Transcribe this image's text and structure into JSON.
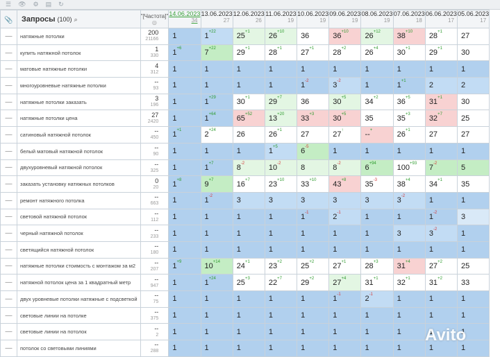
{
  "header": {
    "title": "Запросы",
    "count": "(100)",
    "freq_label": "\"[Частота]\"",
    "dates": [
      {
        "date": "14.06.2023",
        "sub": "34"
      },
      {
        "date": "13.06.2023",
        "sub": "27"
      },
      {
        "date": "12.06.2023",
        "sub": "26"
      },
      {
        "date": "11.06.2023",
        "sub": "19"
      },
      {
        "date": "10.06.2023",
        "sub": "19"
      },
      {
        "date": "09.06.2023",
        "sub": "19"
      },
      {
        "date": "08.06.2023",
        "sub": "19"
      },
      {
        "date": "07.06.2023",
        "sub": "18"
      },
      {
        "date": "06.06.2023",
        "sub": "17"
      },
      {
        "date": "05.06.2023",
        "sub": "17"
      }
    ]
  },
  "rows": [
    {
      "q": "натяжные потолки",
      "fm": "200",
      "fs": "21166",
      "c": [
        {
          "v": "1",
          "bg": "b1"
        },
        {
          "v": "1",
          "d": "+22",
          "bg": "b2"
        },
        {
          "v": "25",
          "d": "+1",
          "bg": "gl"
        },
        {
          "v": "26",
          "d": "+10",
          "bg": "gl"
        },
        {
          "v": "36",
          "bg": "w"
        },
        {
          "v": "36",
          "d": "+10",
          "bg": "r"
        },
        {
          "v": "26",
          "d": "+12",
          "bg": "gl"
        },
        {
          "v": "38",
          "d": "+10",
          "bg": "r"
        },
        {
          "v": "28",
          "d": "+1",
          "bg": "w"
        },
        {
          "v": "27",
          "bg": "w"
        }
      ]
    },
    {
      "q": "купить натяжной потолок",
      "fm": "1",
      "fs": "330",
      "c": [
        {
          "v": "1",
          "d": "+6",
          "bg": "b1"
        },
        {
          "v": "7",
          "d": "+22",
          "bg": "g"
        },
        {
          "v": "29",
          "d": "+1",
          "bg": "w"
        },
        {
          "v": "28",
          "d": "+1",
          "bg": "w"
        },
        {
          "v": "27",
          "d": "+1",
          "bg": "w"
        },
        {
          "v": "28",
          "d": "+2",
          "bg": "w"
        },
        {
          "v": "26",
          "d": "+4",
          "bg": "w"
        },
        {
          "v": "30",
          "d": "+1",
          "bg": "w"
        },
        {
          "v": "29",
          "d": "+1",
          "bg": "w"
        },
        {
          "v": "30",
          "bg": "w"
        }
      ]
    },
    {
      "q": "матовые натяжные потолки",
      "fm": "4",
      "fs": "312",
      "c": [
        {
          "v": "1",
          "bg": "b1"
        },
        {
          "v": "1",
          "bg": "b1"
        },
        {
          "v": "1",
          "bg": "b1"
        },
        {
          "v": "1",
          "bg": "b1"
        },
        {
          "v": "1",
          "bg": "b1"
        },
        {
          "v": "1",
          "bg": "b1"
        },
        {
          "v": "1",
          "bg": "b1"
        },
        {
          "v": "1",
          "bg": "b1"
        },
        {
          "v": "1",
          "bg": "b1"
        },
        {
          "v": "1",
          "bg": "b1"
        }
      ]
    },
    {
      "q": "многоуровневые натяжные потолки",
      "fm": "--",
      "fs": "93",
      "c": [
        {
          "v": "1",
          "bg": "b1"
        },
        {
          "v": "1",
          "bg": "b1"
        },
        {
          "v": "1",
          "bg": "b1"
        },
        {
          "v": "1",
          "bg": "b1"
        },
        {
          "v": "1",
          "d": "-2",
          "bg": "b1"
        },
        {
          "v": "3",
          "d": "-2",
          "bg": "b2"
        },
        {
          "v": "1",
          "bg": "b1"
        },
        {
          "v": "1",
          "d": "+1",
          "bg": "b1"
        },
        {
          "v": "2",
          "bg": "b2"
        },
        {
          "v": "2",
          "bg": "b2"
        }
      ]
    },
    {
      "q": "натяжные потолки заказать",
      "fm": "3",
      "fs": "196",
      "c": [
        {
          "v": "1",
          "bg": "b1"
        },
        {
          "v": "1",
          "d": "+29",
          "bg": "b1"
        },
        {
          "v": "30",
          "d": "+1",
          "bg": "w"
        },
        {
          "v": "29",
          "d": "+7",
          "bg": "gl"
        },
        {
          "v": "36",
          "bg": "w"
        },
        {
          "v": "30",
          "d": "+5",
          "bg": "gl"
        },
        {
          "v": "34",
          "d": "+2",
          "bg": "w"
        },
        {
          "v": "36",
          "d": "+5",
          "bg": "w"
        },
        {
          "v": "31",
          "d": "+1",
          "bg": "r"
        },
        {
          "v": "30",
          "bg": "w"
        }
      ]
    },
    {
      "q": "натяжные потолки цена",
      "fm": "27",
      "fs": "2420",
      "c": [
        {
          "v": "1",
          "bg": "b1"
        },
        {
          "v": "1",
          "d": "+64",
          "bg": "b1"
        },
        {
          "v": "65",
          "d": "+52",
          "bg": "r"
        },
        {
          "v": "13",
          "d": "+20",
          "bg": "gl"
        },
        {
          "v": "33",
          "d": "+3",
          "bg": "r"
        },
        {
          "v": "30",
          "d": "+5",
          "bg": "r"
        },
        {
          "v": "35",
          "bg": "w"
        },
        {
          "v": "35",
          "d": "+3",
          "bg": "w"
        },
        {
          "v": "32",
          "d": "+7",
          "bg": "r"
        },
        {
          "v": "25",
          "bg": "w"
        }
      ]
    },
    {
      "q": "сатиновый натяжной потолок",
      "fm": "--",
      "fs": "450",
      "c": [
        {
          "v": "1",
          "d": "+1",
          "bg": "b1"
        },
        {
          "v": "2",
          "d": "+24",
          "bg": "w"
        },
        {
          "v": "26",
          "bg": "w"
        },
        {
          "v": "26",
          "d": "+1",
          "bg": "w"
        },
        {
          "v": "27",
          "bg": "w"
        },
        {
          "v": "27",
          "d": "↑",
          "bg": "w"
        },
        {
          "v": "--",
          "d": "+",
          "bg": "r"
        },
        {
          "v": "26",
          "d": "+1",
          "bg": "w"
        },
        {
          "v": "27",
          "bg": "w"
        },
        {
          "v": "27",
          "bg": "w"
        }
      ]
    },
    {
      "q": "белый матовый натяжной потолок",
      "fm": "--",
      "fs": "90",
      "c": [
        {
          "v": "1",
          "bg": "b1"
        },
        {
          "v": "1",
          "bg": "b1"
        },
        {
          "v": "1",
          "bg": "b1"
        },
        {
          "v": "1",
          "d": "+5",
          "bg": "b2"
        },
        {
          "v": "6",
          "d": "-5",
          "bg": "g"
        },
        {
          "v": "1",
          "bg": "b1"
        },
        {
          "v": "1",
          "bg": "b1"
        },
        {
          "v": "1",
          "bg": "b1"
        },
        {
          "v": "1",
          "bg": "b1"
        },
        {
          "v": "1",
          "bg": "b1"
        }
      ]
    },
    {
      "q": "двухуровневый натяжной потолок",
      "fm": "--",
      "fs": "325",
      "c": [
        {
          "v": "1",
          "bg": "b1"
        },
        {
          "v": "1",
          "d": "+7",
          "bg": "b1"
        },
        {
          "v": "8",
          "d": "-2",
          "bg": "gl"
        },
        {
          "v": "10",
          "d": "-2",
          "bg": "gl"
        },
        {
          "v": "8",
          "bg": "gl"
        },
        {
          "v": "8",
          "d": "-2",
          "bg": "gl"
        },
        {
          "v": "6",
          "d": "+94",
          "bg": "g"
        },
        {
          "v": "100",
          "d": "+93",
          "bg": "w"
        },
        {
          "v": "7",
          "d": "-2",
          "bg": "g"
        },
        {
          "v": "5",
          "bg": "g"
        }
      ]
    },
    {
      "q": "заказать установку натяжных потолков",
      "fm": "0",
      "fs": "20",
      "c": [
        {
          "v": "1",
          "d": "+8",
          "bg": "b1"
        },
        {
          "v": "9",
          "d": "+7",
          "bg": "g"
        },
        {
          "v": "16",
          "d": "+7",
          "bg": "w"
        },
        {
          "v": "23",
          "d": "+10",
          "bg": "w"
        },
        {
          "v": "33",
          "d": "+10",
          "bg": "w"
        },
        {
          "v": "43",
          "d": "+8",
          "bg": "r"
        },
        {
          "v": "35",
          "d": "-3",
          "bg": "w"
        },
        {
          "v": "38",
          "d": "+4",
          "bg": "w"
        },
        {
          "v": "34",
          "d": "+1",
          "bg": "w"
        },
        {
          "v": "35",
          "bg": "w"
        }
      ]
    },
    {
      "q": "ремонт натяжного потолка",
      "fm": "--",
      "fs": "663",
      "c": [
        {
          "v": "1",
          "bg": "b1"
        },
        {
          "v": "1",
          "d": "-2",
          "bg": "b1"
        },
        {
          "v": "3",
          "bg": "b2"
        },
        {
          "v": "3",
          "bg": "b2"
        },
        {
          "v": "3",
          "bg": "b2"
        },
        {
          "v": "3",
          "bg": "b2"
        },
        {
          "v": "3",
          "bg": "b2"
        },
        {
          "v": "3",
          "d": "-2",
          "bg": "b2"
        },
        {
          "v": "1",
          "bg": "b1"
        },
        {
          "v": "1",
          "bg": "b1"
        }
      ]
    },
    {
      "q": "световой натяжной потолок",
      "fm": "--",
      "fs": "112",
      "c": [
        {
          "v": "1",
          "bg": "b1"
        },
        {
          "v": "1",
          "bg": "b1"
        },
        {
          "v": "1",
          "bg": "b1"
        },
        {
          "v": "1",
          "bg": "b1"
        },
        {
          "v": "1",
          "d": "-1",
          "bg": "b1"
        },
        {
          "v": "2",
          "d": "-1",
          "bg": "b2"
        },
        {
          "v": "1",
          "bg": "b1"
        },
        {
          "v": "1",
          "bg": "b1"
        },
        {
          "v": "1",
          "d": "-2",
          "bg": "b1"
        },
        {
          "v": "3",
          "bg": "b3"
        }
      ]
    },
    {
      "q": "черный натяжной потолок",
      "fm": "--",
      "fs": "233",
      "c": [
        {
          "v": "1",
          "bg": "b1"
        },
        {
          "v": "1",
          "bg": "b1"
        },
        {
          "v": "1",
          "bg": "b1"
        },
        {
          "v": "1",
          "bg": "b1"
        },
        {
          "v": "1",
          "bg": "b1"
        },
        {
          "v": "1",
          "bg": "b1"
        },
        {
          "v": "1",
          "bg": "b1"
        },
        {
          "v": "3",
          "bg": "b2"
        },
        {
          "v": "3",
          "d": "-2",
          "bg": "b2"
        },
        {
          "v": "1",
          "bg": "b1"
        }
      ]
    },
    {
      "q": "светящийся натяжной потолок",
      "fm": "--",
      "fs": "180",
      "c": [
        {
          "v": "1",
          "bg": "b1"
        },
        {
          "v": "1",
          "bg": "b1"
        },
        {
          "v": "1",
          "bg": "b1"
        },
        {
          "v": "1",
          "bg": "b1"
        },
        {
          "v": "1",
          "bg": "b1"
        },
        {
          "v": "1",
          "bg": "b1"
        },
        {
          "v": "1",
          "bg": "b1"
        },
        {
          "v": "1",
          "bg": "b1"
        },
        {
          "v": "1",
          "bg": "b1"
        },
        {
          "v": "1",
          "bg": "b1"
        }
      ]
    },
    {
      "q": "натяжные потолки стоимость с монтажом за м2",
      "fm": "--",
      "fs": "207",
      "c": [
        {
          "v": "1",
          "d": "+9",
          "bg": "b1"
        },
        {
          "v": "10",
          "d": "+14",
          "bg": "g"
        },
        {
          "v": "24",
          "d": "+1",
          "bg": "w"
        },
        {
          "v": "23",
          "d": "+2",
          "bg": "w"
        },
        {
          "v": "25",
          "d": "+2",
          "bg": "w"
        },
        {
          "v": "27",
          "d": "+1",
          "bg": "w"
        },
        {
          "v": "28",
          "d": "+3",
          "bg": "w"
        },
        {
          "v": "31",
          "d": "+4",
          "bg": "r"
        },
        {
          "v": "27",
          "d": "+2",
          "bg": "w"
        },
        {
          "v": "25",
          "bg": "w"
        }
      ]
    },
    {
      "q": "натяжной потолок цена за 1 квадратный метр",
      "fm": "--",
      "fs": "947",
      "c": [
        {
          "v": "1",
          "bg": "b1"
        },
        {
          "v": "1",
          "d": "+24",
          "bg": "b1"
        },
        {
          "v": "25",
          "d": "+3",
          "bg": "w"
        },
        {
          "v": "22",
          "d": "+7",
          "bg": "w"
        },
        {
          "v": "29",
          "d": "+2",
          "bg": "w"
        },
        {
          "v": "27",
          "d": "+4",
          "bg": "gl"
        },
        {
          "v": "31",
          "d": "+1",
          "bg": "w"
        },
        {
          "v": "32",
          "d": "+1",
          "bg": "w"
        },
        {
          "v": "31",
          "d": "+2",
          "bg": "w"
        },
        {
          "v": "33",
          "bg": "w"
        }
      ]
    },
    {
      "q": "двух уровневые потолки натяжные с подсветкой",
      "fm": "--",
      "fs": "75",
      "c": [
        {
          "v": "1",
          "bg": "b1"
        },
        {
          "v": "1",
          "bg": "b1"
        },
        {
          "v": "1",
          "bg": "b1"
        },
        {
          "v": "1",
          "bg": "b1"
        },
        {
          "v": "1",
          "bg": "b1"
        },
        {
          "v": "1",
          "d": "-1",
          "bg": "b1"
        },
        {
          "v": "2",
          "d": "-1",
          "bg": "b2"
        },
        {
          "v": "1",
          "bg": "b1"
        },
        {
          "v": "1",
          "bg": "b1"
        },
        {
          "v": "1",
          "bg": "b1"
        }
      ]
    },
    {
      "q": "световые линии на потолке",
      "fm": "--",
      "fs": "375",
      "c": [
        {
          "v": "1",
          "bg": "b1"
        },
        {
          "v": "1",
          "bg": "b1"
        },
        {
          "v": "1",
          "bg": "b1"
        },
        {
          "v": "1",
          "bg": "b1"
        },
        {
          "v": "1",
          "bg": "b1"
        },
        {
          "v": "1",
          "bg": "b1"
        },
        {
          "v": "1",
          "bg": "b1"
        },
        {
          "v": "1",
          "bg": "b1"
        },
        {
          "v": "1",
          "bg": "b1"
        },
        {
          "v": "1",
          "bg": "b1"
        }
      ]
    },
    {
      "q": "световые линии на потолок",
      "fm": "--",
      "fs": "2",
      "c": [
        {
          "v": "1",
          "bg": "b1"
        },
        {
          "v": "1",
          "bg": "b1"
        },
        {
          "v": "1",
          "bg": "b1"
        },
        {
          "v": "1",
          "bg": "b1"
        },
        {
          "v": "1",
          "bg": "b1"
        },
        {
          "v": "1",
          "bg": "b1"
        },
        {
          "v": "1",
          "bg": "b1"
        },
        {
          "v": "1",
          "bg": "b1"
        },
        {
          "v": "1",
          "bg": "b1"
        },
        {
          "v": "1",
          "bg": "b1"
        }
      ]
    },
    {
      "q": "потолок со световыми линиями",
      "fm": "--",
      "fs": "288",
      "c": [
        {
          "v": "1",
          "bg": "b1"
        },
        {
          "v": "1",
          "bg": "b1"
        },
        {
          "v": "1",
          "bg": "b1"
        },
        {
          "v": "1",
          "bg": "b1"
        },
        {
          "v": "1",
          "bg": "b1"
        },
        {
          "v": "1",
          "bg": "b1"
        },
        {
          "v": "1",
          "bg": "b1"
        },
        {
          "v": "1",
          "bg": "b1"
        },
        {
          "v": "1",
          "bg": "b1"
        },
        {
          "v": "1",
          "bg": "b1"
        }
      ]
    }
  ],
  "watermark": "Avito"
}
